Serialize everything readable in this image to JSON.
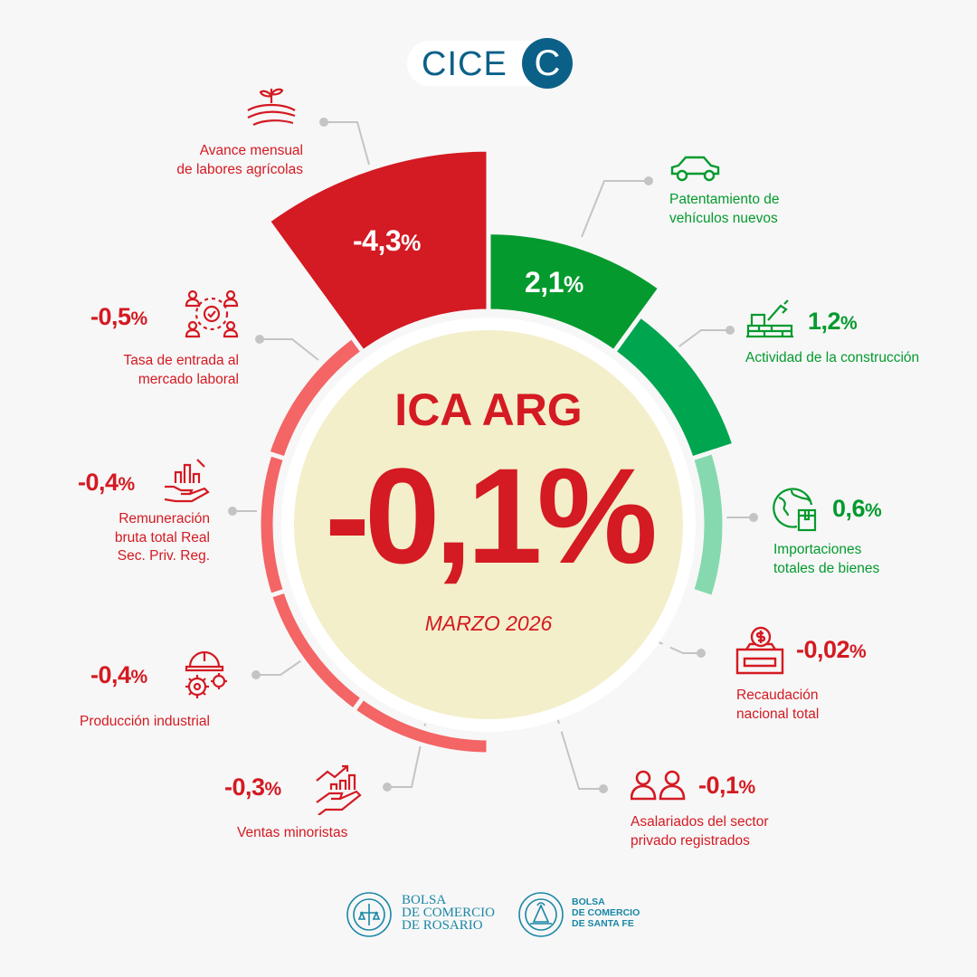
{
  "header": {
    "logo_text": "CICE",
    "logo_mark": "C"
  },
  "center": {
    "title": "ICA ARG",
    "value": "-0,1",
    "value_unit": "%",
    "period": "MARZO 2026",
    "fill_color": "#f3efca"
  },
  "colors": {
    "strong_red": "#d41a22",
    "medium_red": "#f46565",
    "light_red": "#f7c6c6",
    "strong_green": "#049a2e",
    "medium_green": "#00a54f",
    "light_green": "#86d9ae"
  },
  "chart_data": {
    "type": "radial-bar",
    "title": "ICA ARG",
    "categories": [
      "Patentamiento de vehículos nuevos",
      "Actividad de la construcción",
      "Importaciones totales de bienes",
      "Recaudación nacional total",
      "Asalariados del sector privado registrados",
      "Ventas minoristas",
      "Producción industrial",
      "Remuneración bruta total Real Sec. Priv. Reg.",
      "Tasa de entrada al mercado laboral",
      "Avance mensual de labores agrícolas"
    ],
    "values": [
      2.1,
      1.2,
      0.6,
      -0.02,
      -0.1,
      -0.3,
      -0.4,
      -0.4,
      -0.5,
      -4.3
    ],
    "colors": [
      "#049a2e",
      "#00a54f",
      "#86d9ae",
      "#f7c6c6",
      "#f7c6c6",
      "#f46565",
      "#f46565",
      "#f46565",
      "#f46565",
      "#d41a22"
    ]
  },
  "indicators": [
    {
      "key": "patentamiento",
      "value": "2,1",
      "unit": "%",
      "label_lines": [
        "Patentamiento de",
        "vehículos nuevos"
      ],
      "icon": "car-icon"
    },
    {
      "key": "construccion",
      "value": "1,2",
      "unit": "%",
      "label_lines": [
        "Actividad de la construcción"
      ],
      "icon": "construction-bricks-icon"
    },
    {
      "key": "importaciones",
      "value": "0,6",
      "unit": "%",
      "label_lines": [
        "Importaciones",
        "totales de bienes"
      ],
      "icon": "globe-package-icon"
    },
    {
      "key": "recaudacion",
      "value": "-0,02",
      "unit": "%",
      "label_lines": [
        "Recaudación",
        "nacional total"
      ],
      "icon": "coin-box-icon"
    },
    {
      "key": "asalariados",
      "value": "-0,1",
      "unit": "%",
      "label_lines": [
        "Asalariados del sector",
        "privado registrados"
      ],
      "icon": "people-icon"
    },
    {
      "key": "ventas",
      "value": "-0,3",
      "unit": "%",
      "label_lines": [
        "Ventas minoristas"
      ],
      "icon": "hand-chart-icon"
    },
    {
      "key": "produccion",
      "value": "-0,4",
      "unit": "%",
      "label_lines": [
        "Producción industrial"
      ],
      "icon": "helmet-gears-icon"
    },
    {
      "key": "remuneracion",
      "value": "-0,4",
      "unit": "%",
      "label_lines": [
        "Remuneración",
        "bruta total Real",
        "Sec. Priv. Reg."
      ],
      "icon": "hand-bars-percent-icon"
    },
    {
      "key": "tasa",
      "value": "-0,5",
      "unit": "%",
      "label_lines": [
        "Tasa de entrada al",
        "mercado laboral"
      ],
      "icon": "network-people-icon"
    },
    {
      "key": "agricolas",
      "value": "-4,3",
      "unit": "%",
      "label_lines": [
        "Avance mensual",
        "de labores agrícolas"
      ],
      "icon": "sprout-field-icon"
    }
  ],
  "footer": {
    "institutions": [
      {
        "name_lines": [
          "BOLSA",
          "DE COMERCIO",
          "DE ROSARIO"
        ],
        "seal_text": "BOLSA DE COMERCIO DE ROSARIO"
      },
      {
        "name_lines": [
          "BOLSA",
          "DE COMERCIO",
          "DE SANTA FE"
        ],
        "seal_text": "BOLSA DE COMERCIO DE SANTA FE"
      }
    ]
  }
}
